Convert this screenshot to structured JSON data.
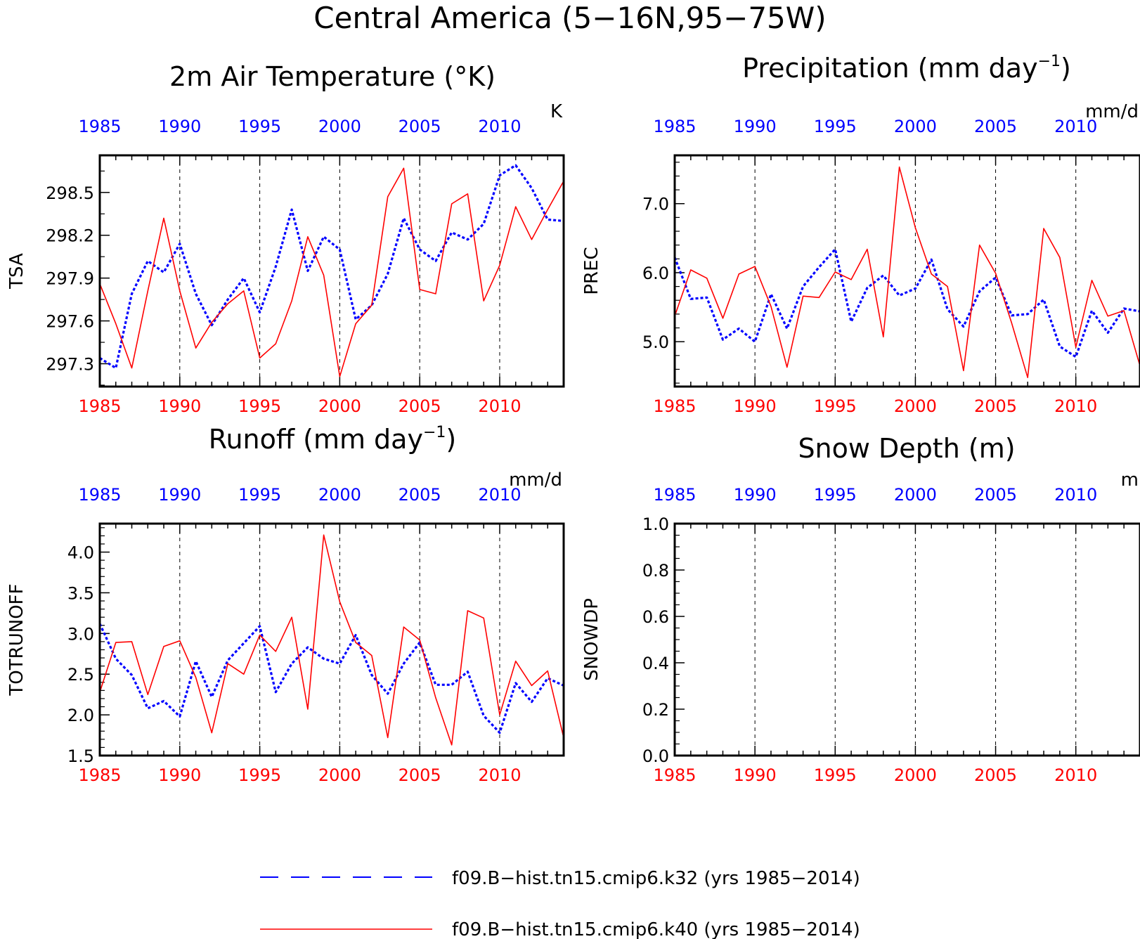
{
  "figure_title": "Central America (5−16N,95−75W)",
  "colors": {
    "series_k32": "#0000ff",
    "series_k40": "#ff0000",
    "axis": "#000000"
  },
  "legend": {
    "placement": "bottom-center",
    "k32": "f09.B−hist.tn15.cmip6.k32 (yrs 1985−2014)",
    "k40": "f09.B−hist.tn15.cmip6.k40 (yrs 1985−2014)"
  },
  "chart_data": [
    {
      "id": "tsa",
      "type": "line",
      "title": "2m Air Temperature (°K)",
      "title_sup": "",
      "title_post": "",
      "ylabel": "TSA",
      "units": "K",
      "xlim": [
        1985,
        2014
      ],
      "ylim": [
        297.14,
        298.76
      ],
      "yticks": [
        297.3,
        297.6,
        297.9,
        298.2,
        298.5
      ],
      "ytick_labels": [
        "297.3",
        "297.6",
        "297.9",
        "298.2",
        "298.5"
      ],
      "yminor": [
        297.15,
        297.45,
        297.75,
        298.05,
        298.35,
        298.65
      ],
      "xticks": [
        1985,
        1990,
        1995,
        2000,
        2005,
        2010
      ],
      "xtick_labels": [
        "1985",
        "1990",
        "1995",
        "2000",
        "2005",
        "2010"
      ],
      "grid": "vertical-dashed",
      "x": [
        1985,
        1986,
        1987,
        1988,
        1989,
        1990,
        1991,
        1992,
        1993,
        1994,
        1995,
        1996,
        1997,
        1998,
        1999,
        2000,
        2001,
        2002,
        2003,
        2004,
        2005,
        2006,
        2007,
        2008,
        2009,
        2010,
        2011,
        2012,
        2013,
        2014
      ],
      "series": [
        {
          "name": "f09.B−hist.tn15.cmip6.k32",
          "style": "dotted",
          "values": [
            297.34,
            297.27,
            297.79,
            298.02,
            297.94,
            298.14,
            297.79,
            297.57,
            297.75,
            297.9,
            297.66,
            297.98,
            298.38,
            297.95,
            298.19,
            298.1,
            297.61,
            297.71,
            297.93,
            298.32,
            298.1,
            298.02,
            298.22,
            298.17,
            298.28,
            298.62,
            298.69,
            298.53,
            298.31,
            298.3
          ]
        },
        {
          "name": "f09.B−hist.tn15.cmip6.k40",
          "style": "solid",
          "values": [
            297.86,
            297.58,
            297.27,
            297.81,
            298.32,
            297.81,
            297.41,
            297.59,
            297.72,
            297.81,
            297.34,
            297.44,
            297.74,
            298.19,
            297.92,
            297.21,
            297.58,
            297.71,
            298.47,
            298.67,
            297.82,
            297.79,
            298.42,
            298.49,
            297.74,
            297.99,
            298.4,
            298.17,
            298.38,
            298.58
          ]
        }
      ]
    },
    {
      "id": "prec",
      "type": "line",
      "title": "Precipitation (mm day",
      "title_sup": "−1",
      "title_post": ")",
      "ylabel": "PREC",
      "units": "mm/d",
      "xlim": [
        1985,
        2014
      ],
      "ylim": [
        4.35,
        7.7
      ],
      "yticks": [
        5.0,
        6.0,
        7.0
      ],
      "ytick_labels": [
        "5.0",
        "6.0",
        "7.0"
      ],
      "yminor": [
        4.4,
        4.6,
        4.8,
        5.2,
        5.4,
        5.6,
        5.8,
        6.2,
        6.4,
        6.6,
        6.8,
        7.2,
        7.4,
        7.6
      ],
      "xticks": [
        1985,
        1990,
        1995,
        2000,
        2005,
        2010
      ],
      "xtick_labels": [
        "1985",
        "1990",
        "1995",
        "2000",
        "2005",
        "2010"
      ],
      "grid": "vertical-dashed",
      "x": [
        1985,
        1986,
        1987,
        1988,
        1989,
        1990,
        1991,
        1992,
        1993,
        1994,
        1995,
        1996,
        1997,
        1998,
        1999,
        2000,
        2001,
        2002,
        2003,
        2004,
        2005,
        2006,
        2007,
        2008,
        2009,
        2010,
        2011,
        2012,
        2013,
        2014
      ],
      "series": [
        {
          "name": "f09.B−hist.tn15.cmip6.k32",
          "style": "dotted",
          "values": [
            6.22,
            5.62,
            5.64,
            5.03,
            5.19,
            5.0,
            5.69,
            5.19,
            5.8,
            6.08,
            6.34,
            5.29,
            5.78,
            5.96,
            5.67,
            5.77,
            6.19,
            5.47,
            5.22,
            5.73,
            5.93,
            5.38,
            5.4,
            5.61,
            4.93,
            4.78,
            5.45,
            5.13,
            5.48,
            5.44
          ]
        },
        {
          "name": "f09.B−hist.tn15.cmip6.k40",
          "style": "solid",
          "values": [
            5.37,
            6.04,
            5.92,
            5.34,
            5.98,
            6.09,
            5.51,
            4.63,
            5.66,
            5.64,
            6.01,
            5.9,
            6.34,
            5.07,
            7.53,
            6.65,
            5.98,
            5.8,
            4.58,
            6.4,
            5.99,
            5.27,
            4.48,
            6.64,
            6.22,
            4.92,
            5.89,
            5.37,
            5.45,
            4.65
          ]
        }
      ]
    },
    {
      "id": "runoff",
      "type": "line",
      "title": "Runoff (mm day",
      "title_sup": "−1",
      "title_post": ")",
      "ylabel": "TOTRUNOFF",
      "units": "mm/d",
      "xlim": [
        1985,
        2014
      ],
      "ylim": [
        1.5,
        4.35
      ],
      "yticks": [
        1.5,
        2.0,
        2.5,
        3.0,
        3.5,
        4.0
      ],
      "ytick_labels": [
        "1.5",
        "2.0",
        "2.5",
        "3.0",
        "3.5",
        "4.0"
      ],
      "yminor": [
        1.6,
        1.7,
        1.8,
        1.9,
        2.1,
        2.2,
        2.3,
        2.4,
        2.6,
        2.7,
        2.8,
        2.9,
        3.1,
        3.2,
        3.3,
        3.4,
        3.6,
        3.7,
        3.8,
        3.9,
        4.1,
        4.2,
        4.3
      ],
      "xticks": [
        1985,
        1990,
        1995,
        2000,
        2005,
        2010
      ],
      "xtick_labels": [
        "1985",
        "1990",
        "1995",
        "2000",
        "2005",
        "2010"
      ],
      "grid": "vertical-dashed",
      "x": [
        1985,
        1986,
        1987,
        1988,
        1989,
        1990,
        1991,
        1992,
        1993,
        1994,
        1995,
        1996,
        1997,
        1998,
        1999,
        2000,
        2001,
        2002,
        2003,
        2004,
        2005,
        2006,
        2007,
        2008,
        2009,
        2010,
        2011,
        2012,
        2013,
        2014
      ],
      "series": [
        {
          "name": "f09.B−hist.tn15.cmip6.k32",
          "style": "dotted",
          "values": [
            3.12,
            2.69,
            2.49,
            2.08,
            2.17,
            1.98,
            2.66,
            2.22,
            2.67,
            2.88,
            3.09,
            2.28,
            2.63,
            2.83,
            2.69,
            2.63,
            2.98,
            2.49,
            2.26,
            2.63,
            2.89,
            2.37,
            2.37,
            2.53,
            1.99,
            1.78,
            2.39,
            2.16,
            2.45,
            2.36
          ]
        },
        {
          "name": "f09.B−hist.tn15.cmip6.k40",
          "style": "solid",
          "values": [
            2.28,
            2.89,
            2.9,
            2.25,
            2.84,
            2.91,
            2.46,
            1.78,
            2.63,
            2.5,
            2.98,
            2.78,
            3.2,
            2.07,
            4.21,
            3.39,
            2.89,
            2.73,
            1.72,
            3.08,
            2.92,
            2.21,
            1.63,
            3.28,
            3.19,
            2.0,
            2.66,
            2.36,
            2.54,
            1.72
          ]
        }
      ]
    },
    {
      "id": "snowdp",
      "type": "line",
      "title": "Snow Depth (m)",
      "title_sup": "",
      "title_post": "",
      "ylabel": "SNOWDP",
      "units": "m",
      "xlim": [
        1985,
        2014
      ],
      "ylim": [
        0.0,
        1.0
      ],
      "yticks": [
        0.0,
        0.2,
        0.4,
        0.6,
        0.8,
        1.0
      ],
      "ytick_labels": [
        "0.0",
        "0.2",
        "0.4",
        "0.6",
        "0.8",
        "1.0"
      ],
      "yminor": [
        0.05,
        0.1,
        0.15,
        0.25,
        0.3,
        0.35,
        0.45,
        0.5,
        0.55,
        0.65,
        0.7,
        0.75,
        0.85,
        0.9,
        0.95
      ],
      "xticks": [
        1985,
        1990,
        1995,
        2000,
        2005,
        2010
      ],
      "xtick_labels": [
        "1985",
        "1990",
        "1995",
        "2000",
        "2005",
        "2010"
      ],
      "grid": "vertical-dashed",
      "x": [],
      "series": []
    }
  ]
}
